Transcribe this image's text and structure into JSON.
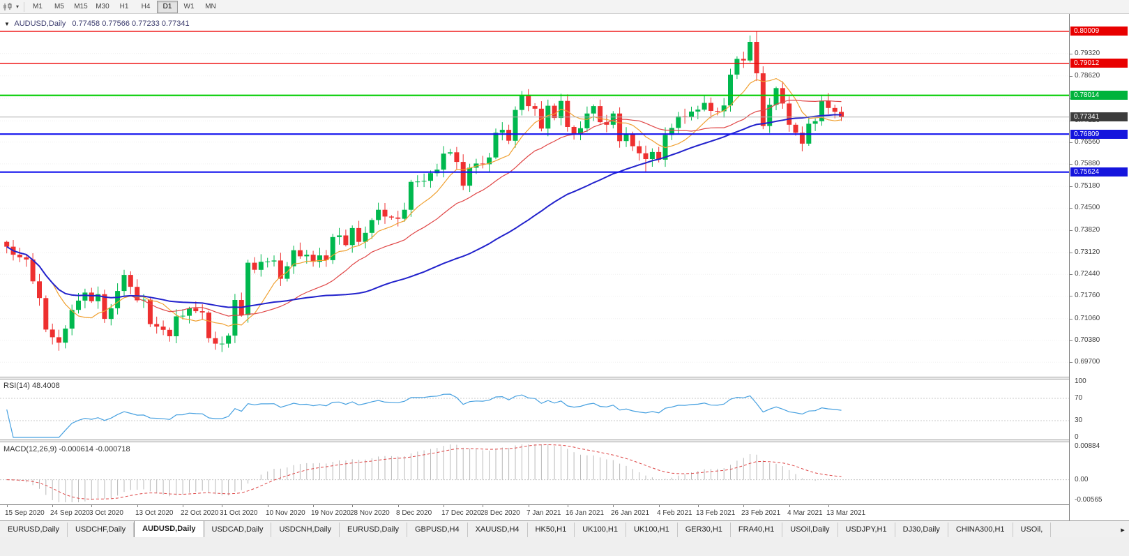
{
  "toolbar": {
    "timeframes": [
      "M1",
      "M5",
      "M15",
      "M30",
      "H1",
      "H4",
      "D1",
      "W1",
      "MN"
    ],
    "active_timeframe": "D1"
  },
  "chart_header": {
    "dropdown_icon": "▼",
    "symbol": "AUDUSD,Daily",
    "ohlc": "0.77458 0.77566 0.77233 0.77341"
  },
  "indicators": {
    "rsi_label": "RSI(14) 48.4008",
    "macd_label": "MACD(12,26,9) -0.000614 -0.000718"
  },
  "tabs": {
    "items": [
      "EURUSD,Daily",
      "USDCHF,Daily",
      "AUDUSD,Daily",
      "USDCAD,Daily",
      "USDCNH,Daily",
      "EURUSD,Daily",
      "GBPUSD,H4",
      "XAUUSD,H4",
      "HK50,H1",
      "UK100,H1",
      "UK100,H1",
      "GER30,H1",
      "FRA40,H1",
      "USOil,Daily",
      "USDJPY,H1",
      "DJ30,Daily",
      "CHINA300,H1",
      "USOil,"
    ],
    "active_index": 2,
    "scroll_right_icon": "▸"
  },
  "chart_data": {
    "type": "candlestick",
    "symbol": "AUDUSD",
    "timeframe": "Daily",
    "candle_up": "#00b84e",
    "candle_down": "#ee3030",
    "first_open": 0.7345,
    "closes": [
      0.733,
      0.7305,
      0.7297,
      0.729,
      0.7222,
      0.717,
      0.7072,
      0.7048,
      0.7031,
      0.7075,
      0.7133,
      0.7162,
      0.7187,
      0.716,
      0.7182,
      0.7105,
      0.7138,
      0.7192,
      0.7242,
      0.7205,
      0.7163,
      0.7165,
      0.7089,
      0.7081,
      0.7071,
      0.7051,
      0.7113,
      0.7115,
      0.7138,
      0.7129,
      0.7125,
      0.7045,
      0.7028,
      0.7028,
      0.7053,
      0.7164,
      0.7117,
      0.728,
      0.7258,
      0.7283,
      0.7284,
      0.7287,
      0.723,
      0.7269,
      0.7319,
      0.73,
      0.7305,
      0.7283,
      0.7303,
      0.7288,
      0.736,
      0.7365,
      0.7335,
      0.7388,
      0.7345,
      0.7373,
      0.7413,
      0.7445,
      0.7424,
      0.7421,
      0.7417,
      0.7445,
      0.7532,
      0.7533,
      0.7535,
      0.7559,
      0.757,
      0.762,
      0.7624,
      0.7594,
      0.752,
      0.7576,
      0.7589,
      0.7587,
      0.7608,
      0.7685,
      0.7694,
      0.766,
      0.7756,
      0.7803,
      0.7768,
      0.776,
      0.7698,
      0.7769,
      0.7731,
      0.7784,
      0.7703,
      0.7682,
      0.7699,
      0.7745,
      0.7768,
      0.7718,
      0.771,
      0.7745,
      0.7659,
      0.7679,
      0.7643,
      0.7621,
      0.7603,
      0.7625,
      0.7601,
      0.7678,
      0.77,
      0.7736,
      0.7734,
      0.7751,
      0.7757,
      0.7778,
      0.7753,
      0.7752,
      0.777,
      0.7866,
      0.7915,
      0.791,
      0.7968,
      0.787,
      0.7706,
      0.7772,
      0.7824,
      0.7776,
      0.771,
      0.7685,
      0.7651,
      0.7713,
      0.7721,
      0.7785,
      0.7762,
      0.775,
      0.7734
    ],
    "wick_overrides": {
      "8": {
        "low": 0.7006
      },
      "33": {
        "low": 0.7002
      },
      "79": {
        "high": 0.7815
      },
      "98": {
        "low": 0.7563
      },
      "115": {
        "high": 0.80009
      }
    },
    "price_axis_range": [
      0.6925,
      0.8055
    ],
    "price_ticks": [
      "0.79320",
      "0.78620",
      "0.77920",
      "0.77220",
      "0.76560",
      "0.75880",
      "0.75180",
      "0.74500",
      "0.73820",
      "0.73120",
      "0.72440",
      "0.71760",
      "0.71060",
      "0.70380",
      "0.69700"
    ],
    "moving_averages": [
      {
        "period": 8,
        "color": "#f0a030",
        "width": 1.2
      },
      {
        "period": 20,
        "color": "#e04646",
        "width": 1.2
      },
      {
        "period": 50,
        "color": "#2222cc",
        "width": 2
      }
    ],
    "hlines": [
      {
        "value": 0.80009,
        "color": "#ee0000",
        "width": 1.4
      },
      {
        "value": 0.79012,
        "color": "#ee0000",
        "width": 1.4
      },
      {
        "value": 0.78014,
        "color": "#00cc00",
        "width": 2.2
      },
      {
        "value": 0.76809,
        "color": "#1212ee",
        "width": 2.2
      },
      {
        "value": 0.75624,
        "color": "#1212ee",
        "width": 2.2
      }
    ],
    "current_price": 0.77341,
    "price_boxes": [
      {
        "text": "0.80009",
        "value": 0.80009,
        "color": "#e80000"
      },
      {
        "text": "0.79012",
        "value": 0.79012,
        "color": "#e80000"
      },
      {
        "text": "0.78014",
        "value": 0.78014,
        "color": "#00b33c"
      },
      {
        "text": "0.77341",
        "value": 0.77341,
        "color": "#3c3c3c"
      },
      {
        "text": "0.76809",
        "value": 0.76809,
        "color": "#1515dd"
      },
      {
        "text": "0.75624",
        "value": 0.75624,
        "color": "#1515dd"
      }
    ],
    "rsi": {
      "period": 14,
      "levels": [
        70,
        30
      ],
      "range": [
        0,
        100
      ],
      "color": "#46a0e0",
      "axis_labels": [
        "100",
        "70",
        "30",
        "0"
      ]
    },
    "macd": {
      "fast": 12,
      "slow": 26,
      "signal": 9,
      "range": [
        -0.00565,
        0.00884
      ],
      "bar_color": "#b9b9b9",
      "signal_color": "#dd4444",
      "axis_labels": [
        "0.00884",
        "0.00",
        "-0.00565"
      ]
    },
    "date_ticks": [
      {
        "label": "15 Sep 2020",
        "i": 0
      },
      {
        "label": "24 Sep 2020",
        "i": 7
      },
      {
        "label": "3 Oct 2020",
        "i": 13
      },
      {
        "label": "13 Oct 2020",
        "i": 20
      },
      {
        "label": "22 Oct 2020",
        "i": 27
      },
      {
        "label": "31 Oct 2020",
        "i": 33
      },
      {
        "label": "10 Nov 2020",
        "i": 40
      },
      {
        "label": "19 Nov 2020",
        "i": 47
      },
      {
        "label": "28 Nov 2020",
        "i": 53
      },
      {
        "label": "8 Dec 2020",
        "i": 60
      },
      {
        "label": "17 Dec 2020",
        "i": 67
      },
      {
        "label": "28 Dec 2020",
        "i": 73
      },
      {
        "label": "7 Jan 2021",
        "i": 80
      },
      {
        "label": "16 Jan 2021",
        "i": 86
      },
      {
        "label": "26 Jan 2021",
        "i": 93
      },
      {
        "label": "4 Feb 2021",
        "i": 100
      },
      {
        "label": "13 Feb 2021",
        "i": 106
      },
      {
        "label": "23 Feb 2021",
        "i": 113
      },
      {
        "label": "4 Mar 2021",
        "i": 120
      },
      {
        "label": "13 Mar 2021",
        "i": 126
      }
    ]
  }
}
